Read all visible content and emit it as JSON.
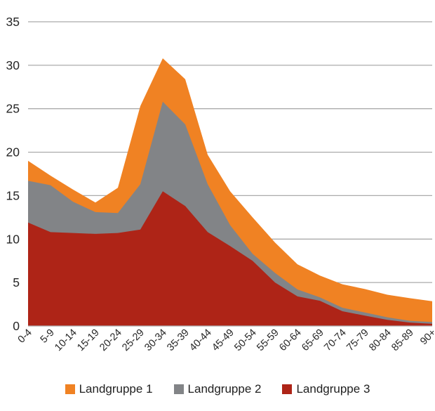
{
  "chart_data": {
    "type": "area",
    "stacked": true,
    "title": "",
    "xlabel": "",
    "ylabel": "",
    "categories": [
      "0-4",
      "5-9",
      "10-14",
      "15-19",
      "20-24",
      "25-29",
      "30-34",
      "35-39",
      "40-44",
      "45-49",
      "50-54",
      "55-59",
      "60-64",
      "65-69",
      "70-74",
      "75-79",
      "80-84",
      "85-89",
      "90+"
    ],
    "series": [
      {
        "name": "Landgruppe 1",
        "color": "#F08223",
        "values": [
          2.3,
          1.1,
          1.4,
          1.1,
          2.9,
          9.0,
          5.0,
          5.2,
          3.4,
          3.9,
          4.2,
          3.5,
          2.9,
          2.5,
          2.7,
          2.7,
          2.6,
          2.6,
          2.4
        ]
      },
      {
        "name": "Landgruppe 2",
        "color": "#828487",
        "values": [
          4.8,
          5.4,
          3.6,
          2.5,
          2.3,
          5.2,
          10.3,
          9.4,
          5.5,
          2.4,
          0.8,
          1.1,
          0.8,
          0.4,
          0.4,
          0.35,
          0.3,
          0.2,
          0.2
        ]
      },
      {
        "name": "Landgruppe 3",
        "color": "#AE2417",
        "values": [
          11.9,
          10.8,
          10.7,
          10.6,
          10.7,
          11.1,
          15.5,
          13.8,
          10.8,
          9.2,
          7.5,
          5.0,
          3.4,
          2.9,
          1.7,
          1.2,
          0.7,
          0.4,
          0.25
        ]
      }
    ],
    "ylim": [
      0,
      35
    ],
    "yticks": [
      0,
      5,
      10,
      15,
      20,
      25,
      30,
      35
    ],
    "grid": "horizontal",
    "gridline_color": "#ABABAB",
    "axis_label_color": "#262626",
    "legend_position": "bottom",
    "x_label_rotation_deg": -45
  }
}
